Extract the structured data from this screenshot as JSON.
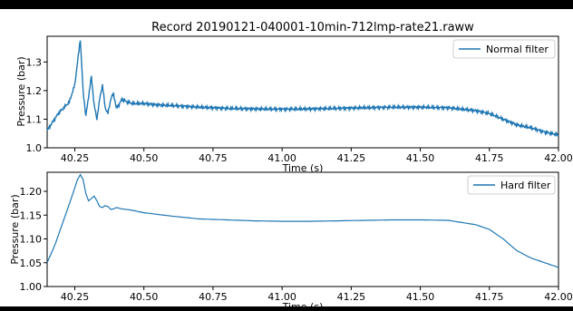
{
  "colors": {
    "line": "#1f77b4",
    "frame": "#000000"
  },
  "chart_data": [
    {
      "type": "line",
      "title": "Record 20190121-040001-10min-712lmp-rate21.raww",
      "xlabel": "Time (s)",
      "ylabel": "Pressure (bar)",
      "xlim": [
        40.15,
        42.0
      ],
      "ylim": [
        1.0,
        1.39
      ],
      "xticks": [
        "40.25",
        "40.50",
        "40.75",
        "41.00",
        "41.25",
        "41.50",
        "41.75",
        "42.00"
      ],
      "yticks": [
        "1.0",
        "1.1",
        "1.2",
        "1.3"
      ],
      "legend": "upper right",
      "series": [
        {
          "name": "Normal filter",
          "noisy": true,
          "x": [
            40.15,
            40.17,
            40.19,
            40.21,
            40.23,
            40.25,
            40.26,
            40.27,
            40.28,
            40.29,
            40.3,
            40.31,
            40.32,
            40.33,
            40.34,
            40.35,
            40.36,
            40.37,
            40.38,
            40.39,
            40.4,
            40.41,
            40.42,
            40.44,
            40.46,
            40.48,
            40.5,
            40.55,
            40.6,
            40.7,
            40.8,
            40.9,
            41.0,
            41.1,
            41.2,
            41.3,
            41.4,
            41.5,
            41.6,
            41.7,
            41.75,
            41.8,
            41.85,
            41.9,
            41.95,
            42.0
          ],
          "y": [
            1.06,
            1.09,
            1.12,
            1.14,
            1.16,
            1.22,
            1.3,
            1.38,
            1.2,
            1.11,
            1.18,
            1.25,
            1.15,
            1.1,
            1.17,
            1.22,
            1.14,
            1.12,
            1.17,
            1.19,
            1.14,
            1.15,
            1.17,
            1.16,
            1.155,
            1.155,
            1.155,
            1.15,
            1.148,
            1.142,
            1.138,
            1.136,
            1.135,
            1.136,
            1.138,
            1.14,
            1.142,
            1.142,
            1.14,
            1.13,
            1.12,
            1.1,
            1.08,
            1.07,
            1.055,
            1.045
          ]
        }
      ]
    },
    {
      "type": "line",
      "title": "",
      "xlabel": "Time (s)",
      "ylabel": "Pressure (bar)",
      "xlim": [
        40.15,
        42.0
      ],
      "ylim": [
        1.0,
        1.24
      ],
      "xticks": [
        "40.25",
        "40.50",
        "40.75",
        "41.00",
        "41.25",
        "41.50",
        "41.75",
        "42.00"
      ],
      "yticks": [
        "1.00",
        "1.05",
        "1.10",
        "1.15",
        "1.20"
      ],
      "legend": "upper right",
      "series": [
        {
          "name": "Hard filter",
          "noisy": false,
          "x": [
            40.15,
            40.18,
            40.21,
            40.24,
            40.26,
            40.27,
            40.28,
            40.29,
            40.3,
            40.31,
            40.32,
            40.33,
            40.34,
            40.35,
            40.36,
            40.37,
            40.38,
            40.39,
            40.4,
            40.42,
            40.45,
            40.5,
            40.6,
            40.7,
            40.8,
            40.9,
            41.0,
            41.1,
            41.2,
            41.3,
            41.4,
            41.5,
            41.6,
            41.7,
            41.75,
            41.8,
            41.85,
            41.9,
            41.95,
            42.0
          ],
          "y": [
            1.05,
            1.09,
            1.14,
            1.19,
            1.225,
            1.235,
            1.225,
            1.195,
            1.18,
            1.185,
            1.19,
            1.18,
            1.168,
            1.166,
            1.17,
            1.168,
            1.162,
            1.163,
            1.166,
            1.163,
            1.161,
            1.155,
            1.148,
            1.142,
            1.14,
            1.138,
            1.137,
            1.137,
            1.138,
            1.139,
            1.14,
            1.14,
            1.139,
            1.13,
            1.12,
            1.1,
            1.075,
            1.06,
            1.05,
            1.04
          ]
        }
      ]
    }
  ]
}
